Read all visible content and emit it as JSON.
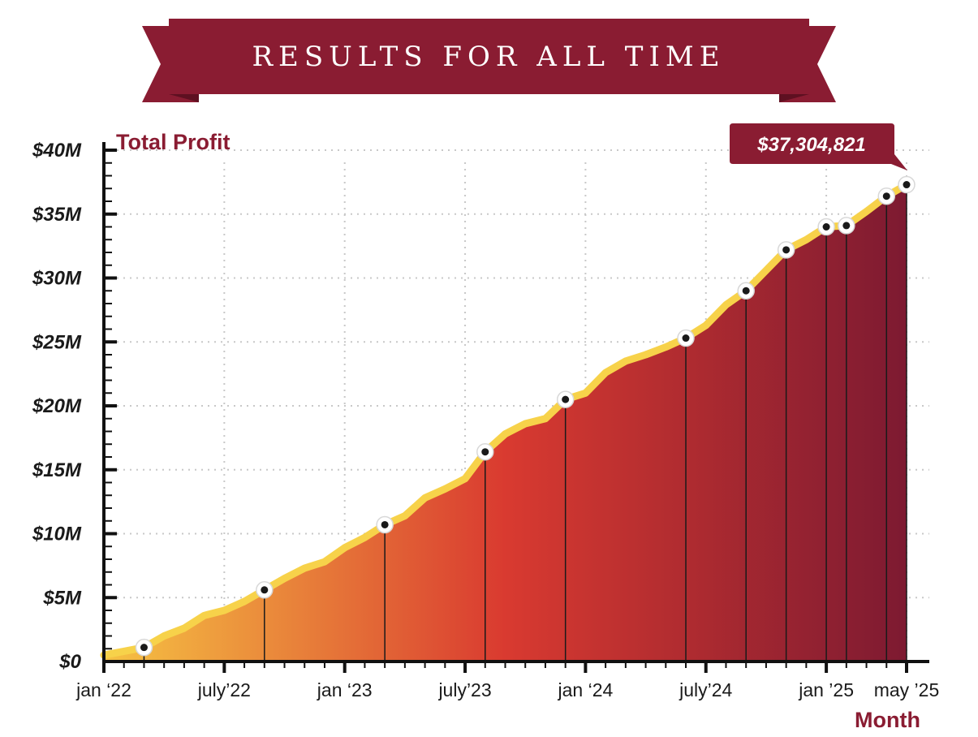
{
  "banner": {
    "title": "RESULTS FOR ALL TIME"
  },
  "callout": {
    "text": "$37,304,821"
  },
  "colors": {
    "banner": "#8a1c32",
    "banner_dark": "#5e1021",
    "line": "#f7d24a",
    "area_start": "#f6c343",
    "area_mid": "#d93a30",
    "area_end": "#7d1a31",
    "label": "#8a1c32",
    "grid": "#c8c8c8"
  },
  "chart_data": {
    "type": "area",
    "ylabel": "Total Profit",
    "xlabel": "Month",
    "ylim": [
      0,
      40000000
    ],
    "xlim": [
      0,
      40
    ],
    "y_ticks": [
      {
        "value": 0,
        "label": "$0"
      },
      {
        "value": 5000000,
        "label": "$5M"
      },
      {
        "value": 10000000,
        "label": "$10M"
      },
      {
        "value": 15000000,
        "label": "$15M"
      },
      {
        "value": 20000000,
        "label": "$20M"
      },
      {
        "value": 25000000,
        "label": "$25M"
      },
      {
        "value": 30000000,
        "label": "$30M"
      },
      {
        "value": 35000000,
        "label": "$35M"
      },
      {
        "value": 40000000,
        "label": "$40M"
      }
    ],
    "x_ticks": [
      {
        "value": 0,
        "label": "jan ‘22"
      },
      {
        "value": 6,
        "label": "july’22"
      },
      {
        "value": 12,
        "label": "jan ‘23"
      },
      {
        "value": 18,
        "label": "july’23"
      },
      {
        "value": 24,
        "label": "jan ‘24"
      },
      {
        "value": 30,
        "label": "july’24"
      },
      {
        "value": 36,
        "label": "jan ’25"
      },
      {
        "value": 40,
        "label": "may ’25"
      }
    ],
    "x": [
      0,
      1,
      2,
      3,
      4,
      5,
      6,
      7,
      8,
      9,
      10,
      11,
      12,
      13,
      14,
      15,
      16,
      17,
      18,
      19,
      20,
      21,
      22,
      23,
      24,
      25,
      26,
      27,
      28,
      29,
      30,
      31,
      32,
      33,
      34,
      35,
      36,
      37,
      38,
      39,
      40
    ],
    "values": [
      500000,
      800000,
      1100000,
      2000000,
      2600000,
      3600000,
      4000000,
      4700000,
      5600000,
      6500000,
      7300000,
      7800000,
      8900000,
      9700000,
      10700000,
      11400000,
      12800000,
      13500000,
      14300000,
      16400000,
      17800000,
      18600000,
      19000000,
      20500000,
      21000000,
      22600000,
      23500000,
      24000000,
      24600000,
      25300000,
      26300000,
      27900000,
      29000000,
      30600000,
      32200000,
      33000000,
      34000000,
      34100000,
      35200000,
      36400000,
      37300000
    ],
    "markers": [
      2,
      8,
      14,
      19,
      23,
      29,
      32,
      34,
      36,
      37,
      39,
      40
    ],
    "grid": true
  }
}
